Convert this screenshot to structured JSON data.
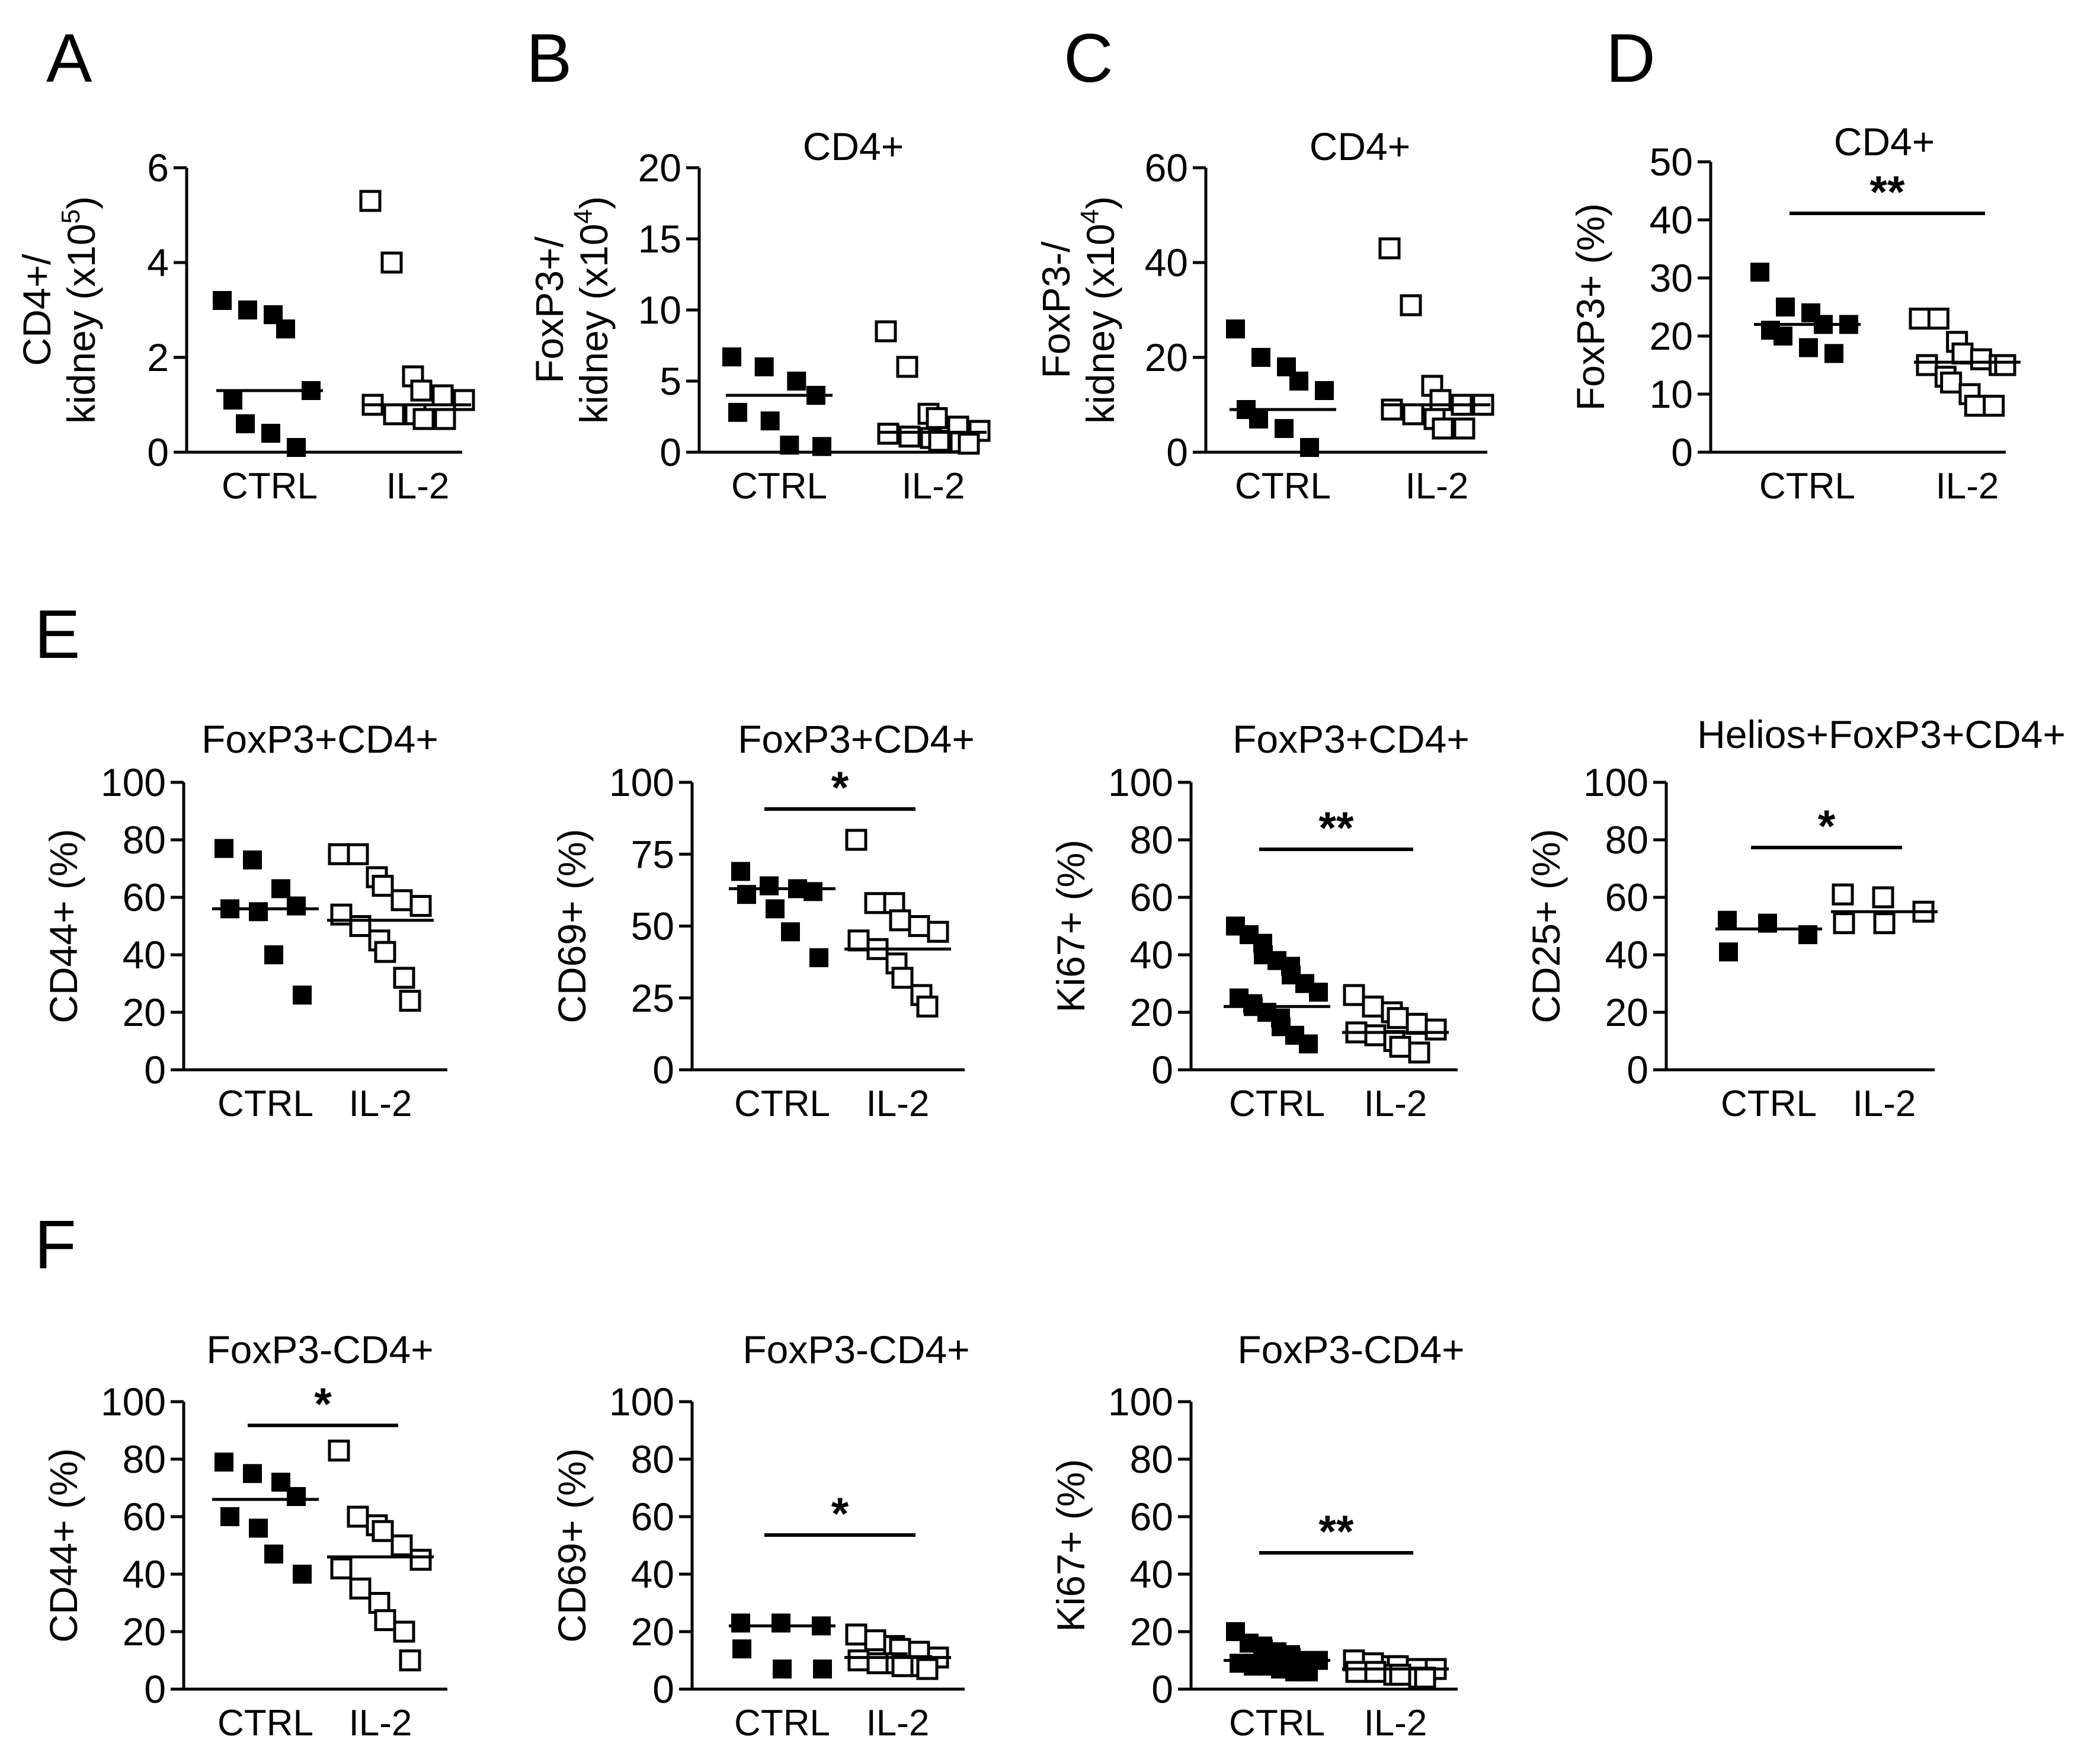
{
  "figure": {
    "panel_letters": [
      "A",
      "B",
      "C",
      "D",
      "E",
      "F"
    ]
  },
  "colors": {
    "filled": "#000000",
    "open": "#ffffff",
    "stroke": "#000000"
  },
  "chart_data": [
    {
      "id": "A",
      "type": "scatter",
      "title": "",
      "ylabel": "CD4+/\nkidney (x10^5)",
      "ylabel_lines": [
        "CD4+/",
        "kidney (x10",
        "5",
        ")"
      ],
      "ylim": [
        0,
        6
      ],
      "yticks": [
        0,
        2,
        4,
        6
      ],
      "categories": [
        "CTRL",
        "IL-2"
      ],
      "series": [
        {
          "name": "CTRL",
          "filled": true,
          "values": [
            3.2,
            3.0,
            2.9,
            2.6,
            1.3,
            1.1,
            0.6,
            0.4,
            0.1
          ],
          "mean": 1.3
        },
        {
          "name": "IL-2",
          "filled": false,
          "values": [
            5.3,
            4.0,
            1.6,
            1.3,
            1.2,
            1.1,
            1.0,
            0.8,
            0.8,
            0.7,
            0.7
          ],
          "mean": 1.0
        }
      ],
      "significance": ""
    },
    {
      "id": "B",
      "type": "scatter",
      "title": "CD4+",
      "ylabel_lines": [
        "FoxP3+/",
        "kidney (x10",
        "4",
        ")"
      ],
      "ylim": [
        0,
        20
      ],
      "yticks": [
        0,
        5,
        10,
        15,
        20
      ],
      "categories": [
        "CTRL",
        "IL-2"
      ],
      "series": [
        {
          "name": "CTRL",
          "filled": true,
          "values": [
            6.7,
            6.0,
            5.0,
            4.0,
            2.8,
            2.2,
            0.5,
            0.4
          ],
          "mean": 4.0
        },
        {
          "name": "IL-2",
          "filled": false,
          "values": [
            8.5,
            6.0,
            2.7,
            2.4,
            1.8,
            1.5,
            1.3,
            1.1,
            1.0,
            0.8,
            0.7,
            0.6
          ],
          "mean": 1.4
        }
      ],
      "significance": ""
    },
    {
      "id": "C",
      "type": "scatter",
      "title": "CD4+",
      "ylabel_lines": [
        "FoxP3-/",
        "kidney (x10",
        "4",
        ")"
      ],
      "ylim": [
        0,
        60
      ],
      "yticks": [
        0,
        20,
        40,
        60
      ],
      "categories": [
        "CTRL",
        "IL-2"
      ],
      "series": [
        {
          "name": "CTRL",
          "filled": true,
          "values": [
            26,
            20,
            18,
            15,
            13,
            9,
            7,
            5,
            1
          ],
          "mean": 9
        },
        {
          "name": "IL-2",
          "filled": false,
          "values": [
            43,
            31,
            14,
            11,
            10,
            10,
            9,
            8,
            7,
            5,
            5
          ],
          "mean": 10
        }
      ],
      "significance": ""
    },
    {
      "id": "D",
      "type": "scatter",
      "title": "CD4+",
      "ylabel_lines": [
        "FoxP3+ (%)"
      ],
      "ylim": [
        0,
        50
      ],
      "yticks": [
        0,
        10,
        20,
        30,
        40,
        50
      ],
      "categories": [
        "CTRL",
        "IL-2"
      ],
      "series": [
        {
          "name": "CTRL",
          "filled": true,
          "values": [
            31,
            25,
            24,
            22,
            22,
            21,
            20,
            18,
            17
          ],
          "mean": 22
        },
        {
          "name": "IL-2",
          "filled": false,
          "values": [
            23,
            23,
            19,
            17,
            16,
            15,
            15,
            15,
            13,
            12,
            10,
            8,
            8
          ],
          "mean": 15.5
        }
      ],
      "significance": "**"
    },
    {
      "id": "E1",
      "type": "scatter",
      "title": "FoxP3+CD4+",
      "ylabel_lines": [
        "CD44+ (%)"
      ],
      "ylim": [
        0,
        100
      ],
      "yticks": [
        0,
        20,
        40,
        60,
        80,
        100
      ],
      "categories": [
        "CTRL",
        "IL-2"
      ],
      "series": [
        {
          "name": "CTRL",
          "filled": true,
          "values": [
            77,
            73,
            63,
            57,
            56,
            55,
            40,
            26
          ],
          "mean": 56
        },
        {
          "name": "IL-2",
          "filled": false,
          "values": [
            75,
            75,
            67,
            64,
            59,
            57,
            54,
            50,
            45,
            41,
            32,
            24
          ],
          "mean": 52
        }
      ],
      "significance": ""
    },
    {
      "id": "E2",
      "type": "scatter",
      "title": "FoxP3+CD4+",
      "ylabel_lines": [
        "CD69+ (%)"
      ],
      "ylim": [
        0,
        100
      ],
      "yticks": [
        0,
        25,
        50,
        75,
        100
      ],
      "categories": [
        "CTRL",
        "IL-2"
      ],
      "series": [
        {
          "name": "CTRL",
          "filled": true,
          "values": [
            69,
            64,
            63,
            62,
            61,
            56,
            48,
            39
          ],
          "mean": 63
        },
        {
          "name": "IL-2",
          "filled": false,
          "values": [
            80,
            58,
            58,
            52,
            50,
            48,
            45,
            42,
            37,
            32,
            26,
            22
          ],
          "mean": 42
        }
      ],
      "significance": "*"
    },
    {
      "id": "E3",
      "type": "scatter",
      "title": "FoxP3+CD4+",
      "ylabel_lines": [
        "Ki67+ (%)"
      ],
      "ylim": [
        0,
        100
      ],
      "yticks": [
        0,
        20,
        40,
        60,
        80,
        100
      ],
      "categories": [
        "CTRL",
        "IL-2"
      ],
      "series": [
        {
          "name": "CTRL",
          "filled": true,
          "values": [
            50,
            47,
            44,
            40,
            38,
            36,
            33,
            30,
            27,
            25,
            23,
            22,
            20,
            18,
            15,
            12,
            9
          ],
          "mean": 22
        },
        {
          "name": "IL-2",
          "filled": false,
          "values": [
            26,
            22,
            20,
            18,
            16,
            14,
            13,
            12,
            10,
            8,
            6
          ],
          "mean": 13
        }
      ],
      "significance": "**"
    },
    {
      "id": "E4",
      "type": "scatter",
      "title": "Helios+FoxP3+CD4+",
      "ylabel_lines": [
        "CD25+ (%)"
      ],
      "ylim": [
        0,
        100
      ],
      "yticks": [
        0,
        20,
        40,
        60,
        80,
        100
      ],
      "categories": [
        "CTRL",
        "IL-2"
      ],
      "series": [
        {
          "name": "CTRL",
          "filled": true,
          "values": [
            52,
            51,
            47,
            41
          ],
          "mean": 49
        },
        {
          "name": "IL-2",
          "filled": false,
          "values": [
            61,
            60,
            55,
            51,
            51
          ],
          "mean": 55
        }
      ],
      "significance": "*"
    },
    {
      "id": "F1",
      "type": "scatter",
      "title": "FoxP3-CD4+",
      "ylabel_lines": [
        "CD44+ (%)"
      ],
      "ylim": [
        0,
        100
      ],
      "yticks": [
        0,
        20,
        40,
        60,
        80,
        100
      ],
      "categories": [
        "CTRL",
        "IL-2"
      ],
      "series": [
        {
          "name": "CTRL",
          "filled": true,
          "values": [
            79,
            75,
            72,
            67,
            60,
            56,
            47,
            40
          ],
          "mean": 66
        },
        {
          "name": "IL-2",
          "filled": false,
          "values": [
            83,
            60,
            57,
            55,
            50,
            45,
            42,
            35,
            30,
            24,
            20,
            10
          ],
          "mean": 46
        }
      ],
      "significance": "*"
    },
    {
      "id": "F2",
      "type": "scatter",
      "title": "FoxP3-CD4+",
      "ylabel_lines": [
        "CD69+ (%)"
      ],
      "ylim": [
        0,
        100
      ],
      "yticks": [
        0,
        20,
        40,
        60,
        80,
        100
      ],
      "categories": [
        "CTRL",
        "IL-2"
      ],
      "series": [
        {
          "name": "CTRL",
          "filled": true,
          "values": [
            23,
            23,
            22,
            14,
            7,
            7
          ],
          "mean": 22
        },
        {
          "name": "IL-2",
          "filled": false,
          "values": [
            19,
            17,
            15,
            14,
            13,
            11,
            10,
            9,
            9,
            8,
            8,
            7
          ],
          "mean": 11
        }
      ],
      "significance": "*"
    },
    {
      "id": "F3",
      "type": "scatter",
      "title": "FoxP3-CD4+",
      "ylabel_lines": [
        "Ki67+ (%)"
      ],
      "ylim": [
        0,
        100
      ],
      "yticks": [
        0,
        20,
        40,
        60,
        80,
        100
      ],
      "categories": [
        "CTRL",
        "IL-2"
      ],
      "series": [
        {
          "name": "CTRL",
          "filled": true,
          "values": [
            20,
            16,
            15,
            14,
            13,
            12,
            11,
            10,
            10,
            9,
            9,
            8,
            8,
            7,
            7,
            6,
            6
          ],
          "mean": 10
        },
        {
          "name": "IL-2",
          "filled": false,
          "values": [
            10,
            9,
            8,
            8,
            7,
            7,
            6,
            6,
            5,
            5,
            4,
            4
          ],
          "mean": 7
        }
      ],
      "significance": "**"
    }
  ]
}
